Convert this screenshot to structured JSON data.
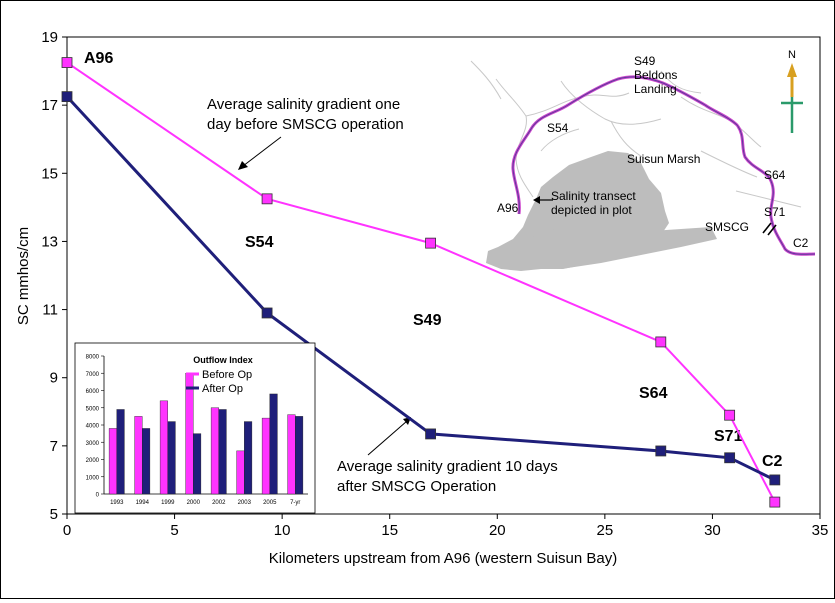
{
  "chart_data": {
    "type": "line",
    "title": "",
    "xlabel": "Kilometers upstream from A96 (western Suisun Bay)",
    "ylabel": "SC mmhos/cm",
    "xlim": [
      0,
      35
    ],
    "ylim": [
      5,
      19
    ],
    "x_ticks": [
      "0",
      "5",
      "10",
      "15",
      "20",
      "25",
      "30",
      "35"
    ],
    "y_ticks": [
      "5",
      "7",
      "9",
      "11",
      "13",
      "15",
      "17",
      "19"
    ],
    "grid": false,
    "legend_position": "none",
    "colors": {
      "before": "#ff33ff",
      "after": "#1f1f7a"
    },
    "series": [
      {
        "key": "before",
        "x": [
          0,
          9.3,
          16.9,
          27.6,
          30.8,
          32.9
        ],
        "y": [
          18.25,
          14.25,
          12.95,
          10.05,
          7.9,
          5.35
        ]
      },
      {
        "key": "after",
        "x": [
          0,
          9.3,
          16.9,
          27.6,
          30.8,
          32.9
        ],
        "y": [
          17.25,
          10.9,
          7.35,
          6.85,
          6.65,
          6.0
        ]
      }
    ],
    "station_labels": [
      "A96",
      "S54",
      "S49",
      "S64",
      "S71",
      "C2"
    ],
    "annotations": {
      "before": [
        "Average salinity gradient one",
        "day before SMSCG operation"
      ],
      "after": [
        "Average salinity gradient 10 days",
        "after SMSCG Operation"
      ]
    }
  },
  "map_inset": {
    "labels": [
      "S49",
      "Beldons",
      "Landing",
      "S54",
      "Suisun Marsh",
      "S64",
      "A96",
      "Salinity transect",
      "depicted in plot",
      "S71",
      "SMSCG",
      "C2"
    ],
    "compass": "N"
  },
  "inset_chart": {
    "type": "bar",
    "title": "Outflow Index",
    "categories": [
      "1993",
      "1994",
      "1999",
      "2000",
      "2002",
      "2003",
      "2005",
      "7-yr"
    ],
    "y_ticks": [
      "0",
      "1000",
      "2000",
      "3000",
      "4000",
      "5000",
      "6000",
      "7000",
      "8000"
    ],
    "ylim": [
      0,
      8000
    ],
    "colors": {
      "before": "#ff33ff",
      "after": "#1f1f7a"
    },
    "series": [
      {
        "name": "Before Op",
        "values": [
          3800,
          4500,
          5400,
          7000,
          5000,
          2500,
          4400,
          4600
        ]
      },
      {
        "name": "After Op",
        "values": [
          4900,
          3800,
          4200,
          3500,
          4900,
          4200,
          5800,
          4500
        ]
      }
    ]
  }
}
